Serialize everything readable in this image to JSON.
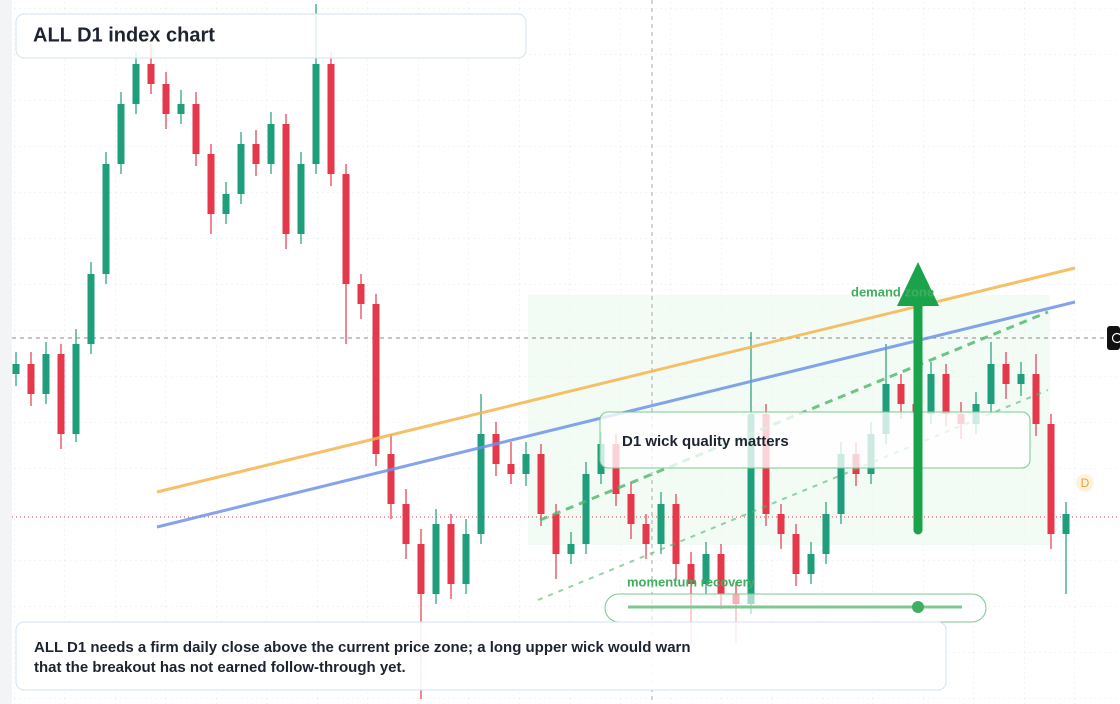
{
  "chart_data": {
    "type": "candlestick",
    "title": "ALL D1 index chart",
    "ylim": [
      0,
      704
    ],
    "up_color": "#1f9e7c",
    "down_color": "#e5394b",
    "ohlc": [
      [
        330,
        352,
        318,
        340
      ],
      [
        340,
        352,
        298,
        310
      ],
      [
        310,
        362,
        300,
        350
      ],
      [
        350,
        360,
        255,
        270
      ],
      [
        270,
        375,
        262,
        360
      ],
      [
        360,
        442,
        350,
        430
      ],
      [
        430,
        552,
        420,
        540
      ],
      [
        540,
        612,
        530,
        600
      ],
      [
        600,
        652,
        590,
        640
      ],
      [
        640,
        660,
        610,
        620
      ],
      [
        620,
        632,
        575,
        590
      ],
      [
        590,
        614,
        580,
        600
      ],
      [
        600,
        612,
        538,
        550
      ],
      [
        550,
        560,
        470,
        490
      ],
      [
        490,
        522,
        480,
        510
      ],
      [
        510,
        572,
        500,
        560
      ],
      [
        560,
        574,
        528,
        540
      ],
      [
        540,
        592,
        530,
        580
      ],
      [
        580,
        590,
        455,
        470
      ],
      [
        470,
        552,
        460,
        540
      ],
      [
        540,
        700,
        530,
        640
      ],
      [
        640,
        652,
        518,
        530
      ],
      [
        530,
        540,
        360,
        420
      ],
      [
        420,
        430,
        385,
        400
      ],
      [
        400,
        410,
        238,
        250
      ],
      [
        250,
        270,
        185,
        200
      ],
      [
        200,
        215,
        145,
        160
      ],
      [
        160,
        175,
        5,
        110
      ],
      [
        110,
        195,
        100,
        180
      ],
      [
        180,
        190,
        105,
        120
      ],
      [
        120,
        185,
        110,
        170
      ],
      [
        170,
        310,
        160,
        270
      ],
      [
        270,
        282,
        228,
        240
      ],
      [
        240,
        262,
        220,
        230
      ],
      [
        230,
        262,
        218,
        250
      ],
      [
        250,
        260,
        178,
        190
      ],
      [
        190,
        200,
        125,
        150
      ],
      [
        150,
        172,
        140,
        160
      ],
      [
        160,
        242,
        150,
        230
      ],
      [
        230,
        272,
        220,
        260
      ],
      [
        260,
        270,
        198,
        210
      ],
      [
        210,
        222,
        165,
        180
      ],
      [
        180,
        190,
        145,
        160
      ],
      [
        160,
        212,
        150,
        200
      ],
      [
        200,
        210,
        125,
        140
      ],
      [
        140,
        152,
        60,
        120
      ],
      [
        120,
        162,
        110,
        150
      ],
      [
        150,
        160,
        95,
        110
      ],
      [
        110,
        122,
        60,
        100
      ],
      [
        100,
        372,
        90,
        290
      ],
      [
        290,
        300,
        178,
        190
      ],
      [
        190,
        200,
        155,
        170
      ],
      [
        170,
        180,
        118,
        130
      ],
      [
        130,
        162,
        120,
        150
      ],
      [
        150,
        202,
        140,
        190
      ],
      [
        190,
        262,
        180,
        250
      ],
      [
        250,
        262,
        218,
        230
      ],
      [
        230,
        282,
        220,
        270
      ],
      [
        270,
        360,
        260,
        320
      ],
      [
        320,
        330,
        285,
        300
      ],
      [
        300,
        312,
        275,
        290
      ],
      [
        290,
        342,
        280,
        330
      ],
      [
        330,
        340,
        278,
        290
      ],
      [
        290,
        302,
        265,
        280
      ],
      [
        280,
        312,
        270,
        300
      ],
      [
        300,
        362,
        290,
        340
      ],
      [
        340,
        352,
        305,
        320
      ],
      [
        320,
        342,
        308,
        330
      ],
      [
        330,
        350,
        268,
        280
      ],
      [
        280,
        290,
        155,
        170
      ],
      [
        170,
        202,
        110,
        190
      ]
    ],
    "annotations": {
      "zone": "D1 wick quality matters",
      "target": "demand zone",
      "momentum": "momentum recovery",
      "marker": "D"
    },
    "note": [
      "ALL D1 needs a firm daily close above the current price zone; a long upper wick would warn",
      "that the breakout has not earned follow-through yet."
    ]
  }
}
